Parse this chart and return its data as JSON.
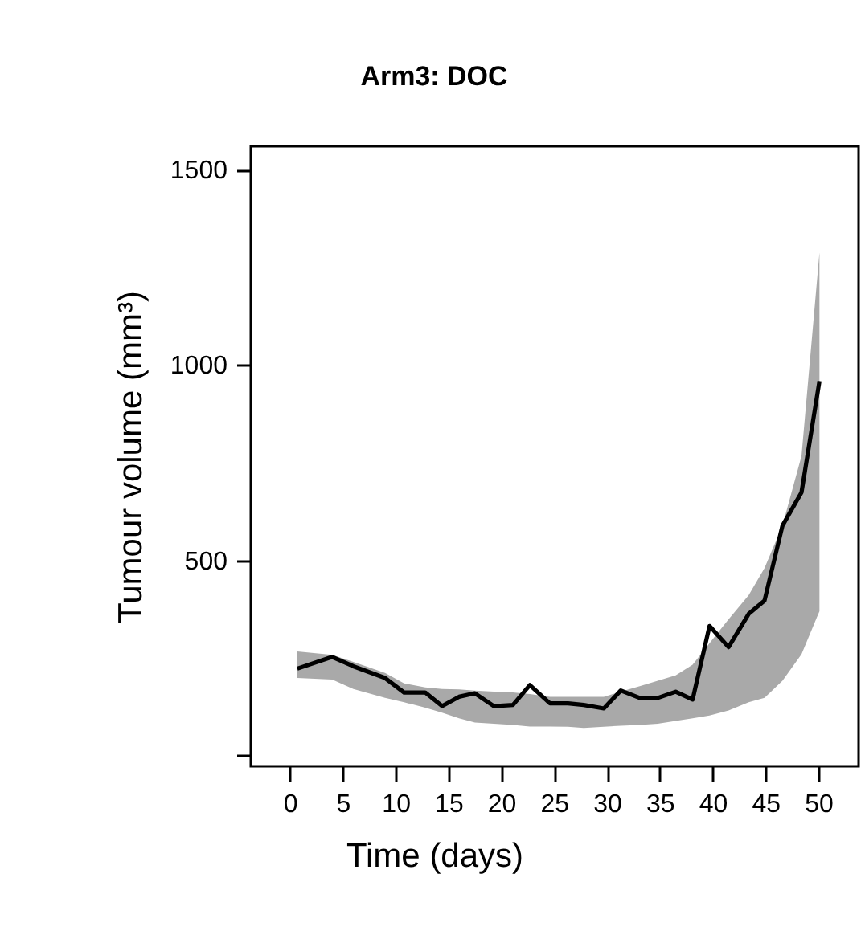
{
  "chart_data": {
    "type": "line",
    "title": "Arm3: DOC",
    "xlabel": "Time (days)",
    "ylabel": "Tumour volume (mm³)",
    "xlim": [
      -3.7,
      53.8
    ],
    "xticks": [
      0,
      5,
      10,
      15,
      20,
      25,
      30,
      35,
      40,
      45,
      50
    ],
    "ylim": [
      -27,
      1560
    ],
    "yticks": [
      {
        "value": 0,
        "label": null
      },
      500,
      1000,
      1500
    ],
    "grid": false,
    "line_style": "solid",
    "series": [
      {
        "color": "#000000",
        "x": [
          0.7,
          4.0,
          6.0,
          9.0,
          10.8,
          12.8,
          14.4,
          16.0,
          17.5,
          19.3,
          21.1,
          22.7,
          24.6,
          26.3,
          27.8,
          29.7,
          31.3,
          33.1,
          34.8,
          36.5,
          38.1,
          39.7,
          41.5,
          43.4,
          44.9,
          46.6,
          48.4,
          50.1
        ],
        "values": [
          223,
          253,
          229,
          199,
          162,
          162,
          127,
          151,
          160,
          127,
          130,
          181,
          134,
          134,
          130,
          121,
          167,
          148,
          148,
          164,
          144,
          332,
          278,
          363,
          397,
          589,
          674,
          959
        ],
        "lower": [
          199,
          195,
          171,
          148,
          137,
          123,
          110,
          96,
          85,
          82,
          79,
          75,
          75,
          74,
          71,
          74,
          77,
          79,
          82,
          89,
          96,
          103,
          116,
          137,
          148,
          192,
          260,
          370
        ],
        "upper": [
          267,
          258,
          240,
          212,
          185,
          175,
          171,
          170,
          167,
          164,
          162,
          158,
          151,
          151,
          151,
          151,
          164,
          178,
          192,
          206,
          233,
          288,
          349,
          411,
          480,
          589,
          767,
          1288
        ]
      }
    ]
  }
}
